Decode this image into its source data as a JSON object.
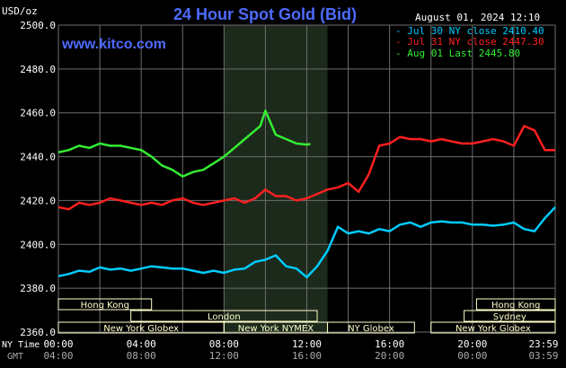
{
  "chart_data": {
    "type": "line",
    "title": "24 Hour Spot Gold (Bid)",
    "timestamp": "August 01, 2024 12:10",
    "unit_label": "USD/oz",
    "watermark": "www.kitco.com",
    "y_ticks": [
      "2500.0",
      "2480.0",
      "2460.0",
      "2440.0",
      "2420.0",
      "2400.0",
      "2380.0",
      "2360.0"
    ],
    "ylim": [
      2360,
      2500
    ],
    "x_ticks_ny": [
      "00:00",
      "04:00",
      "08:00",
      "12:00",
      "16:00",
      "20:00",
      "23:59"
    ],
    "x_ticks_gmt": [
      "04:00",
      "08:00",
      "12:00",
      "16:00",
      "20:00",
      "00:00",
      "03:59"
    ],
    "row_label_ny": "NY Time",
    "row_label_gmt": "GMT",
    "colors": {
      "background": "#000000",
      "plot_bg": "#000000",
      "highlight_bg": "#1c2a1c",
      "grid": "#6e6e6e",
      "axis_text": "#ffffff",
      "title": "#4d6bff",
      "watermark": "#4d6bff",
      "session_fill": "#ffffcc",
      "session_text": "#000000"
    },
    "highlight_hours": [
      8,
      13
    ],
    "legend": [
      {
        "text": "Jul 30 NY close 2410.40",
        "color": "#00ccff"
      },
      {
        "text": "Jul 31 NY close 2447.30",
        "color": "#ff2020"
      },
      {
        "text": "Aug 01 Last 2445.80",
        "color": "#33ee33"
      }
    ],
    "sessions": [
      {
        "label": "Hong Kong",
        "h0": 0,
        "h1": 4.5,
        "row": 0
      },
      {
        "label": "Hong Kong",
        "h0": 20.2,
        "h1": 24,
        "row": 0
      },
      {
        "label": "London",
        "h0": 3.5,
        "h1": 12.5,
        "row": 1
      },
      {
        "label": "Sydney",
        "h0": 19.6,
        "h1": 24,
        "row": 1
      },
      {
        "label": "New York Globex",
        "h0": 0,
        "h1": 8,
        "row": 2
      },
      {
        "label": "New York NYMEX",
        "h0": 8,
        "h1": 13,
        "row": 2
      },
      {
        "label": "NY Globex",
        "h0": 13,
        "h1": 17.2,
        "row": 2
      },
      {
        "label": "New York Globex",
        "h0": 18,
        "h1": 24,
        "row": 2
      }
    ],
    "series": [
      {
        "name": "Jul 30",
        "color": "#00ccff",
        "x": [
          0,
          0.5,
          1,
          1.5,
          2,
          2.5,
          3,
          3.5,
          4,
          4.5,
          5,
          5.5,
          6,
          6.5,
          7,
          7.5,
          8,
          8.5,
          9,
          9.5,
          10,
          10.5,
          11,
          11.5,
          12,
          12.5,
          13,
          13.5,
          14,
          14.5,
          15,
          15.5,
          16,
          16.5,
          17,
          17.5,
          18,
          18.5,
          19,
          19.5,
          20,
          20.5,
          21,
          21.5,
          22,
          22.5,
          23,
          23.5,
          24
        ],
        "y": [
          2385.5,
          2386.5,
          2388,
          2387.5,
          2389.5,
          2388.5,
          2389,
          2388,
          2389,
          2390,
          2389.5,
          2389,
          2389,
          2388,
          2387,
          2388,
          2387,
          2388.5,
          2389,
          2392,
          2393,
          2395,
          2390,
          2389,
          2385,
          2390,
          2397,
          2408,
          2405,
          2406,
          2405,
          2407,
          2406,
          2409,
          2410,
          2408,
          2410,
          2410.5,
          2410,
          2410,
          2409,
          2409,
          2408.5,
          2409,
          2410,
          2407,
          2406,
          2412,
          2417
        ]
      },
      {
        "name": "Jul 31",
        "color": "#ff2020",
        "x": [
          0,
          0.5,
          1,
          1.5,
          2,
          2.5,
          3,
          3.5,
          4,
          4.5,
          5,
          5.5,
          6,
          6.5,
          7,
          7.5,
          8,
          8.5,
          9,
          9.5,
          10,
          10.5,
          11,
          11.5,
          12,
          12.5,
          13,
          13.5,
          14,
          14.5,
          15,
          15.5,
          16,
          16.5,
          17,
          17.5,
          18,
          18.5,
          19,
          19.5,
          20,
          20.5,
          21,
          21.5,
          22,
          22.5,
          23,
          23.5,
          24
        ],
        "y": [
          2417,
          2416,
          2419,
          2418,
          2419,
          2421,
          2420,
          2419,
          2418,
          2419,
          2418,
          2420,
          2421,
          2419,
          2418,
          2419,
          2420,
          2421,
          2419,
          2421,
          2425,
          2422,
          2422,
          2420,
          2421,
          2423,
          2425,
          2426,
          2428,
          2424,
          2432,
          2445,
          2446,
          2449,
          2448,
          2448,
          2447,
          2448,
          2447,
          2446,
          2446,
          2447,
          2448,
          2447,
          2445,
          2454,
          2452,
          2443,
          2443
        ]
      },
      {
        "name": "Aug 01",
        "color": "#33ee33",
        "x": [
          0,
          0.5,
          1,
          1.5,
          2,
          2.5,
          3,
          3.5,
          4,
          4.5,
          5,
          5.5,
          6,
          6.5,
          7,
          7.5,
          8,
          8.5,
          9,
          9.5,
          9.75,
          10,
          10.5,
          11,
          11.5,
          12,
          12.17
        ],
        "y": [
          2442,
          2443,
          2445,
          2444,
          2446,
          2445,
          2445,
          2444,
          2443,
          2440,
          2436,
          2434,
          2431,
          2433,
          2434,
          2437,
          2440,
          2444,
          2448,
          2452,
          2454,
          2461,
          2450,
          2448,
          2446,
          2445.5,
          2445.8
        ]
      }
    ]
  }
}
